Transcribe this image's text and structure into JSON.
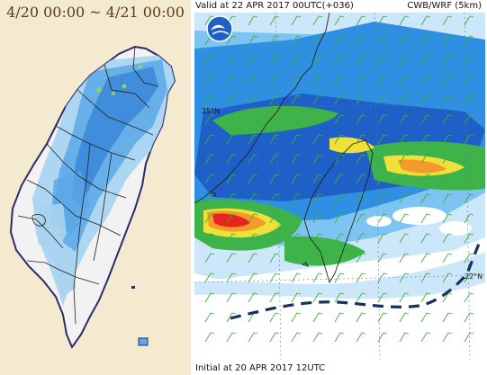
{
  "left_panel": {
    "title": "4/20 00:00 ~ 4/21 00:00",
    "colors": {
      "background": "#f3ead0",
      "land": "#f2f2f2",
      "rain_light": "#a8d4f0",
      "rain_moderate": "#5aa8e6",
      "rain_heavy": "#2f7fd6",
      "rain_peak": "#8fd16a",
      "border": "#222222"
    }
  },
  "right_panel": {
    "valid_text": "Valid at 22 APR 2017 00UTC(+036)",
    "model_text": "CWB/WRF (5km)",
    "initial_text": "Initial at 20 APR 2017 12UTC",
    "lat_labels": [
      "25°N",
      "22°N"
    ],
    "logo_icon": "cwb-logo-icon",
    "colors": {
      "background": "#ffffff",
      "rain_light": "#cce6fa",
      "rain_low": "#7ec4f2",
      "rain_mid": "#2f8fe0",
      "rain_blue": "#1f5fc8",
      "rain_green": "#3db34a",
      "rain_yellow": "#f0e03a",
      "rain_orange": "#f39a2a",
      "rain_red": "#e8241f",
      "front_line": "#14345e",
      "wind_barb": "#3fae3f",
      "coast": "#222222"
    }
  }
}
